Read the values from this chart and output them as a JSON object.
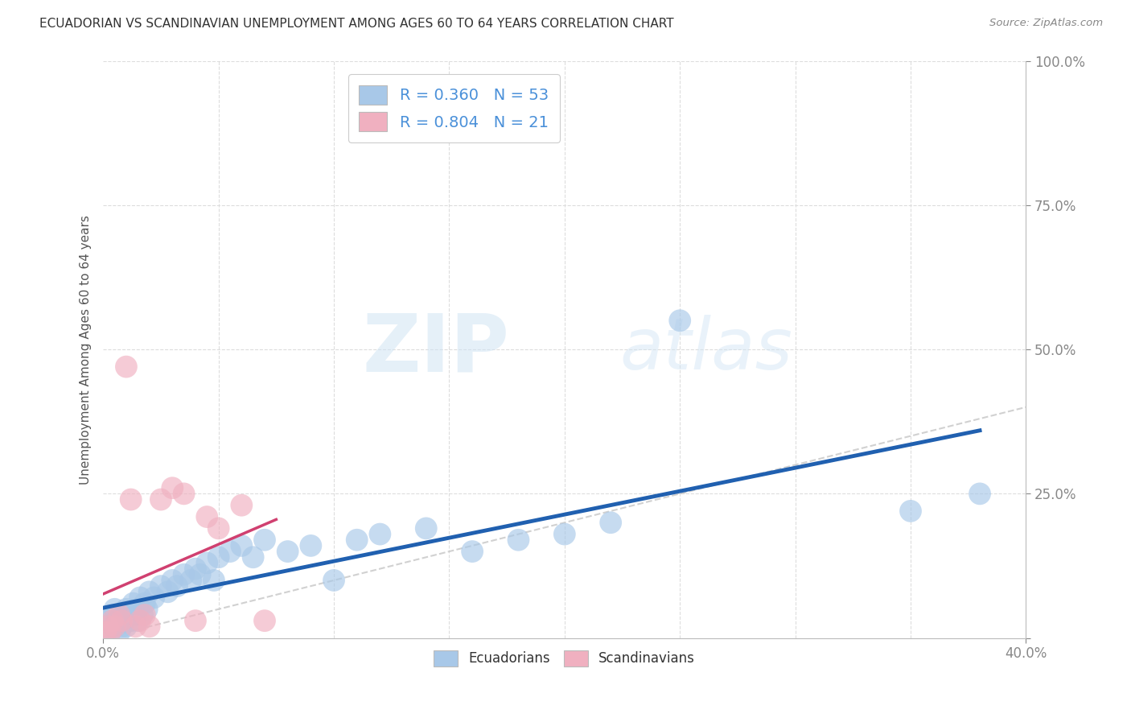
{
  "title": "ECUADORIAN VS SCANDINAVIAN UNEMPLOYMENT AMONG AGES 60 TO 64 YEARS CORRELATION CHART",
  "source": "Source: ZipAtlas.com",
  "xlabel": "",
  "ylabel": "Unemployment Among Ages 60 to 64 years",
  "xlim": [
    0.0,
    0.4
  ],
  "ylim": [
    0.0,
    1.0
  ],
  "blue_color": "#a8c8e8",
  "pink_color": "#f0b0c0",
  "blue_line_color": "#2060b0",
  "pink_line_color": "#d04070",
  "ref_line_color": "#cccccc",
  "grid_color": "#dddddd",
  "title_color": "#333333",
  "label_color": "#4a90d9",
  "r_blue": 0.36,
  "n_blue": 53,
  "r_pink": 0.804,
  "n_pink": 21,
  "ecuadorians_x": [
    0.001,
    0.002,
    0.003,
    0.004,
    0.005,
    0.005,
    0.006,
    0.007,
    0.008,
    0.008,
    0.009,
    0.01,
    0.01,
    0.011,
    0.012,
    0.013,
    0.014,
    0.015,
    0.015,
    0.016,
    0.017,
    0.018,
    0.019,
    0.02,
    0.022,
    0.025,
    0.028,
    0.03,
    0.032,
    0.035,
    0.038,
    0.04,
    0.042,
    0.045,
    0.048,
    0.05,
    0.055,
    0.06,
    0.065,
    0.07,
    0.08,
    0.09,
    0.1,
    0.11,
    0.12,
    0.14,
    0.16,
    0.18,
    0.2,
    0.22,
    0.25,
    0.35,
    0.38
  ],
  "ecuadorians_y": [
    0.02,
    0.03,
    0.01,
    0.04,
    0.02,
    0.05,
    0.03,
    0.01,
    0.04,
    0.02,
    0.03,
    0.05,
    0.02,
    0.04,
    0.03,
    0.06,
    0.04,
    0.05,
    0.03,
    0.07,
    0.04,
    0.06,
    0.05,
    0.08,
    0.07,
    0.09,
    0.08,
    0.1,
    0.09,
    0.11,
    0.1,
    0.12,
    0.11,
    0.13,
    0.1,
    0.14,
    0.15,
    0.16,
    0.14,
    0.17,
    0.15,
    0.16,
    0.1,
    0.17,
    0.18,
    0.19,
    0.15,
    0.17,
    0.18,
    0.2,
    0.55,
    0.22,
    0.25
  ],
  "scandinavians_x": [
    0.001,
    0.002,
    0.003,
    0.004,
    0.005,
    0.007,
    0.008,
    0.01,
    0.012,
    0.014,
    0.016,
    0.018,
    0.02,
    0.025,
    0.03,
    0.035,
    0.04,
    0.045,
    0.05,
    0.06,
    0.07
  ],
  "scandinavians_y": [
    0.01,
    0.02,
    0.01,
    0.03,
    0.02,
    0.04,
    0.03,
    0.47,
    0.24,
    0.02,
    0.03,
    0.04,
    0.02,
    0.24,
    0.26,
    0.25,
    0.03,
    0.21,
    0.19,
    0.23,
    0.03
  ],
  "watermark_zip": "ZIP",
  "watermark_atlas": "atlas",
  "figsize": [
    14.06,
    8.92
  ],
  "dpi": 100
}
